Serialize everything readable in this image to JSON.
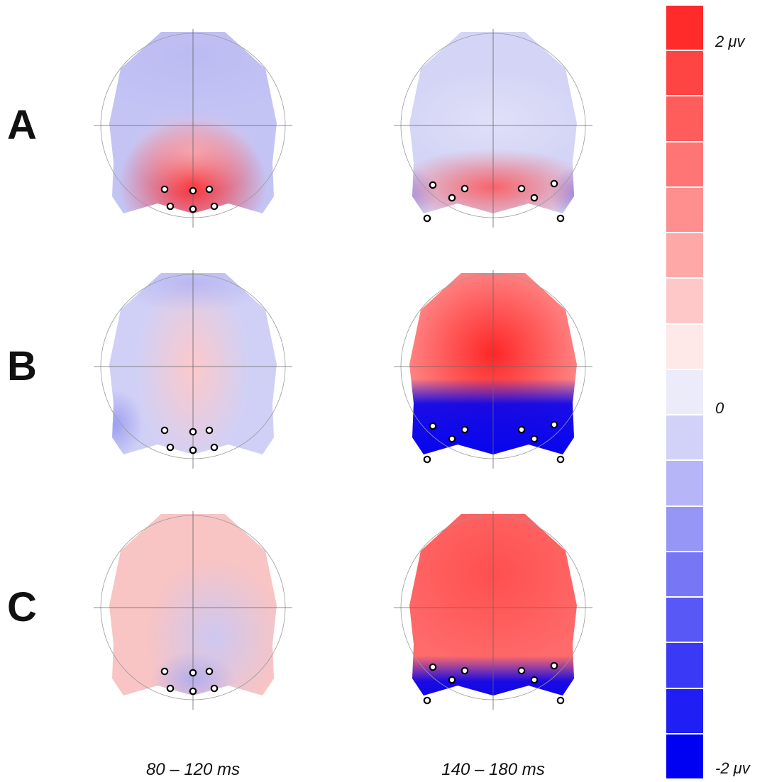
{
  "rows": [
    {
      "label": "A",
      "maps": [
        {
          "pattern": "occipital-red"
        },
        {
          "pattern": "occipital-red-wide"
        }
      ]
    },
    {
      "label": "B",
      "maps": [
        {
          "pattern": "central-pink"
        },
        {
          "pattern": "central-red-posterior-blue"
        }
      ]
    },
    {
      "label": "C",
      "maps": [
        {
          "pattern": "pink-posterior-blue"
        },
        {
          "pattern": "frontal-red-posterior-blue"
        }
      ]
    }
  ],
  "columns": [
    "80 – 120 ms",
    "140 – 180 ms"
  ],
  "colorbar": {
    "max_label": "2 μv",
    "zero_label": "0",
    "min_label": "-2 μv",
    "max_value": 2,
    "min_value": -2,
    "colors": [
      "#ff2a2a",
      "#ff4444",
      "#ff5c5c",
      "#ff7474",
      "#ff8e8e",
      "#ffa8a8",
      "#ffc8c8",
      "#ffe8e8",
      "#ebebfa",
      "#d2d2f9",
      "#b5b5f8",
      "#9696f6",
      "#7777f6",
      "#5858f6",
      "#3a3af6",
      "#1e1ef5",
      "#0000f3"
    ]
  },
  "electrode_sets": {
    "small": 6,
    "wide": 8
  },
  "colors": {
    "red": "#ff0000",
    "blue": "#0000ff",
    "neutral": "#f2f2fa"
  }
}
